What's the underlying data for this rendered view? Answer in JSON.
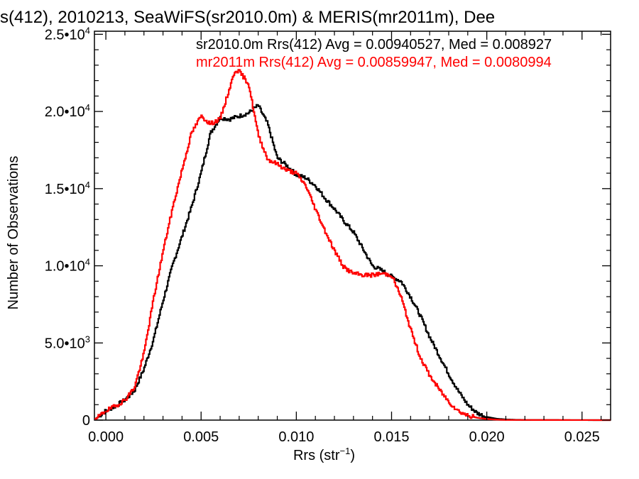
{
  "chart_data": {
    "type": "line",
    "title": "s(412), 2010213, SeaWiFS(sr2010.0m) & MERIS(mr2011m), Dee",
    "xlabel": "Rrs (str",
    "xlabel_sup": "−1",
    "xlabel_tail": ")",
    "ylabel": "Number of Observations",
    "xlim": [
      -0.0006,
      0.0265
    ],
    "ylim": [
      0,
      25200
    ],
    "x_ticks": [
      0.0,
      0.005,
      0.01,
      0.015,
      0.02,
      0.025
    ],
    "x_tick_labels": [
      "0.000",
      "0.005",
      "0.010",
      "0.015",
      "0.020",
      "0.025"
    ],
    "y_ticks": [
      0,
      5000,
      10000,
      15000,
      20000,
      25000
    ],
    "y_tick_labels": [
      "0",
      "5.0•10³",
      "1.0•10⁴",
      "1.5•10⁴",
      "2.0•10⁴",
      "2.5•10⁴"
    ],
    "y_tick_parts": [
      {
        "base": "0",
        "sup": ""
      },
      {
        "base": "5.0•10",
        "sup": "3"
      },
      {
        "base": "1.0•10",
        "sup": "4"
      },
      {
        "base": "1.5•10",
        "sup": "4"
      },
      {
        "base": "2.0•10",
        "sup": "4"
      },
      {
        "base": "2.5•10",
        "sup": "4"
      }
    ],
    "legend": [
      {
        "text": "sr2010.0m Rrs(412) Avg = 0.00940527, Med = 0.008927",
        "color": "#000000"
      },
      {
        "text": "mr2011m Rrs(412) Avg = 0.00859947, Med = 0.0080994",
        "color": "#ff0000"
      }
    ],
    "legend_position": "top-right",
    "series": [
      {
        "name": "sr2010.0m",
        "color": "#000000",
        "x": [
          -0.0006,
          0.0,
          0.0005,
          0.001,
          0.0015,
          0.002,
          0.0025,
          0.003,
          0.0035,
          0.004,
          0.0045,
          0.005,
          0.0055,
          0.006,
          0.0065,
          0.007,
          0.0075,
          0.008,
          0.0085,
          0.009,
          0.0095,
          0.01,
          0.0105,
          0.011,
          0.0115,
          0.012,
          0.0125,
          0.013,
          0.0135,
          0.014,
          0.0145,
          0.015,
          0.0155,
          0.016,
          0.0165,
          0.017,
          0.0175,
          0.018,
          0.0185,
          0.019,
          0.0195,
          0.02,
          0.0205,
          0.021,
          0.0215,
          0.022,
          0.023,
          0.0265
        ],
        "y": [
          0,
          600,
          900,
          1300,
          1900,
          3300,
          5200,
          7700,
          10000,
          11900,
          13800,
          16000,
          18600,
          19600,
          19500,
          19700,
          19900,
          20400,
          19200,
          17000,
          16500,
          15900,
          15700,
          15200,
          14400,
          13700,
          12900,
          12200,
          11100,
          10000,
          9700,
          9300,
          9000,
          8000,
          6800,
          5400,
          4200,
          3000,
          1900,
          1000,
          450,
          200,
          90,
          40,
          20,
          10,
          5,
          0
        ]
      },
      {
        "name": "mr2011m",
        "color": "#ff0000",
        "x": [
          -0.0006,
          0.0,
          0.0005,
          0.001,
          0.0015,
          0.002,
          0.0025,
          0.003,
          0.0035,
          0.004,
          0.0045,
          0.005,
          0.0055,
          0.006,
          0.0065,
          0.0068,
          0.007,
          0.0075,
          0.008,
          0.0085,
          0.009,
          0.0095,
          0.01,
          0.0105,
          0.011,
          0.0115,
          0.012,
          0.0125,
          0.013,
          0.0135,
          0.014,
          0.0145,
          0.015,
          0.0155,
          0.016,
          0.0165,
          0.017,
          0.0175,
          0.018,
          0.0185,
          0.019,
          0.0195,
          0.02,
          0.0205,
          0.021,
          0.0265
        ],
        "y": [
          0,
          600,
          900,
          1300,
          2100,
          4300,
          7800,
          10900,
          13700,
          16200,
          18600,
          19700,
          19200,
          19500,
          21500,
          22700,
          22600,
          21800,
          18500,
          16900,
          16600,
          16200,
          16000,
          15200,
          13700,
          12300,
          11000,
          9900,
          9500,
          9400,
          9400,
          9500,
          9400,
          8000,
          5900,
          4100,
          2900,
          2000,
          1200,
          600,
          300,
          150,
          70,
          30,
          10,
          0
        ]
      }
    ]
  }
}
